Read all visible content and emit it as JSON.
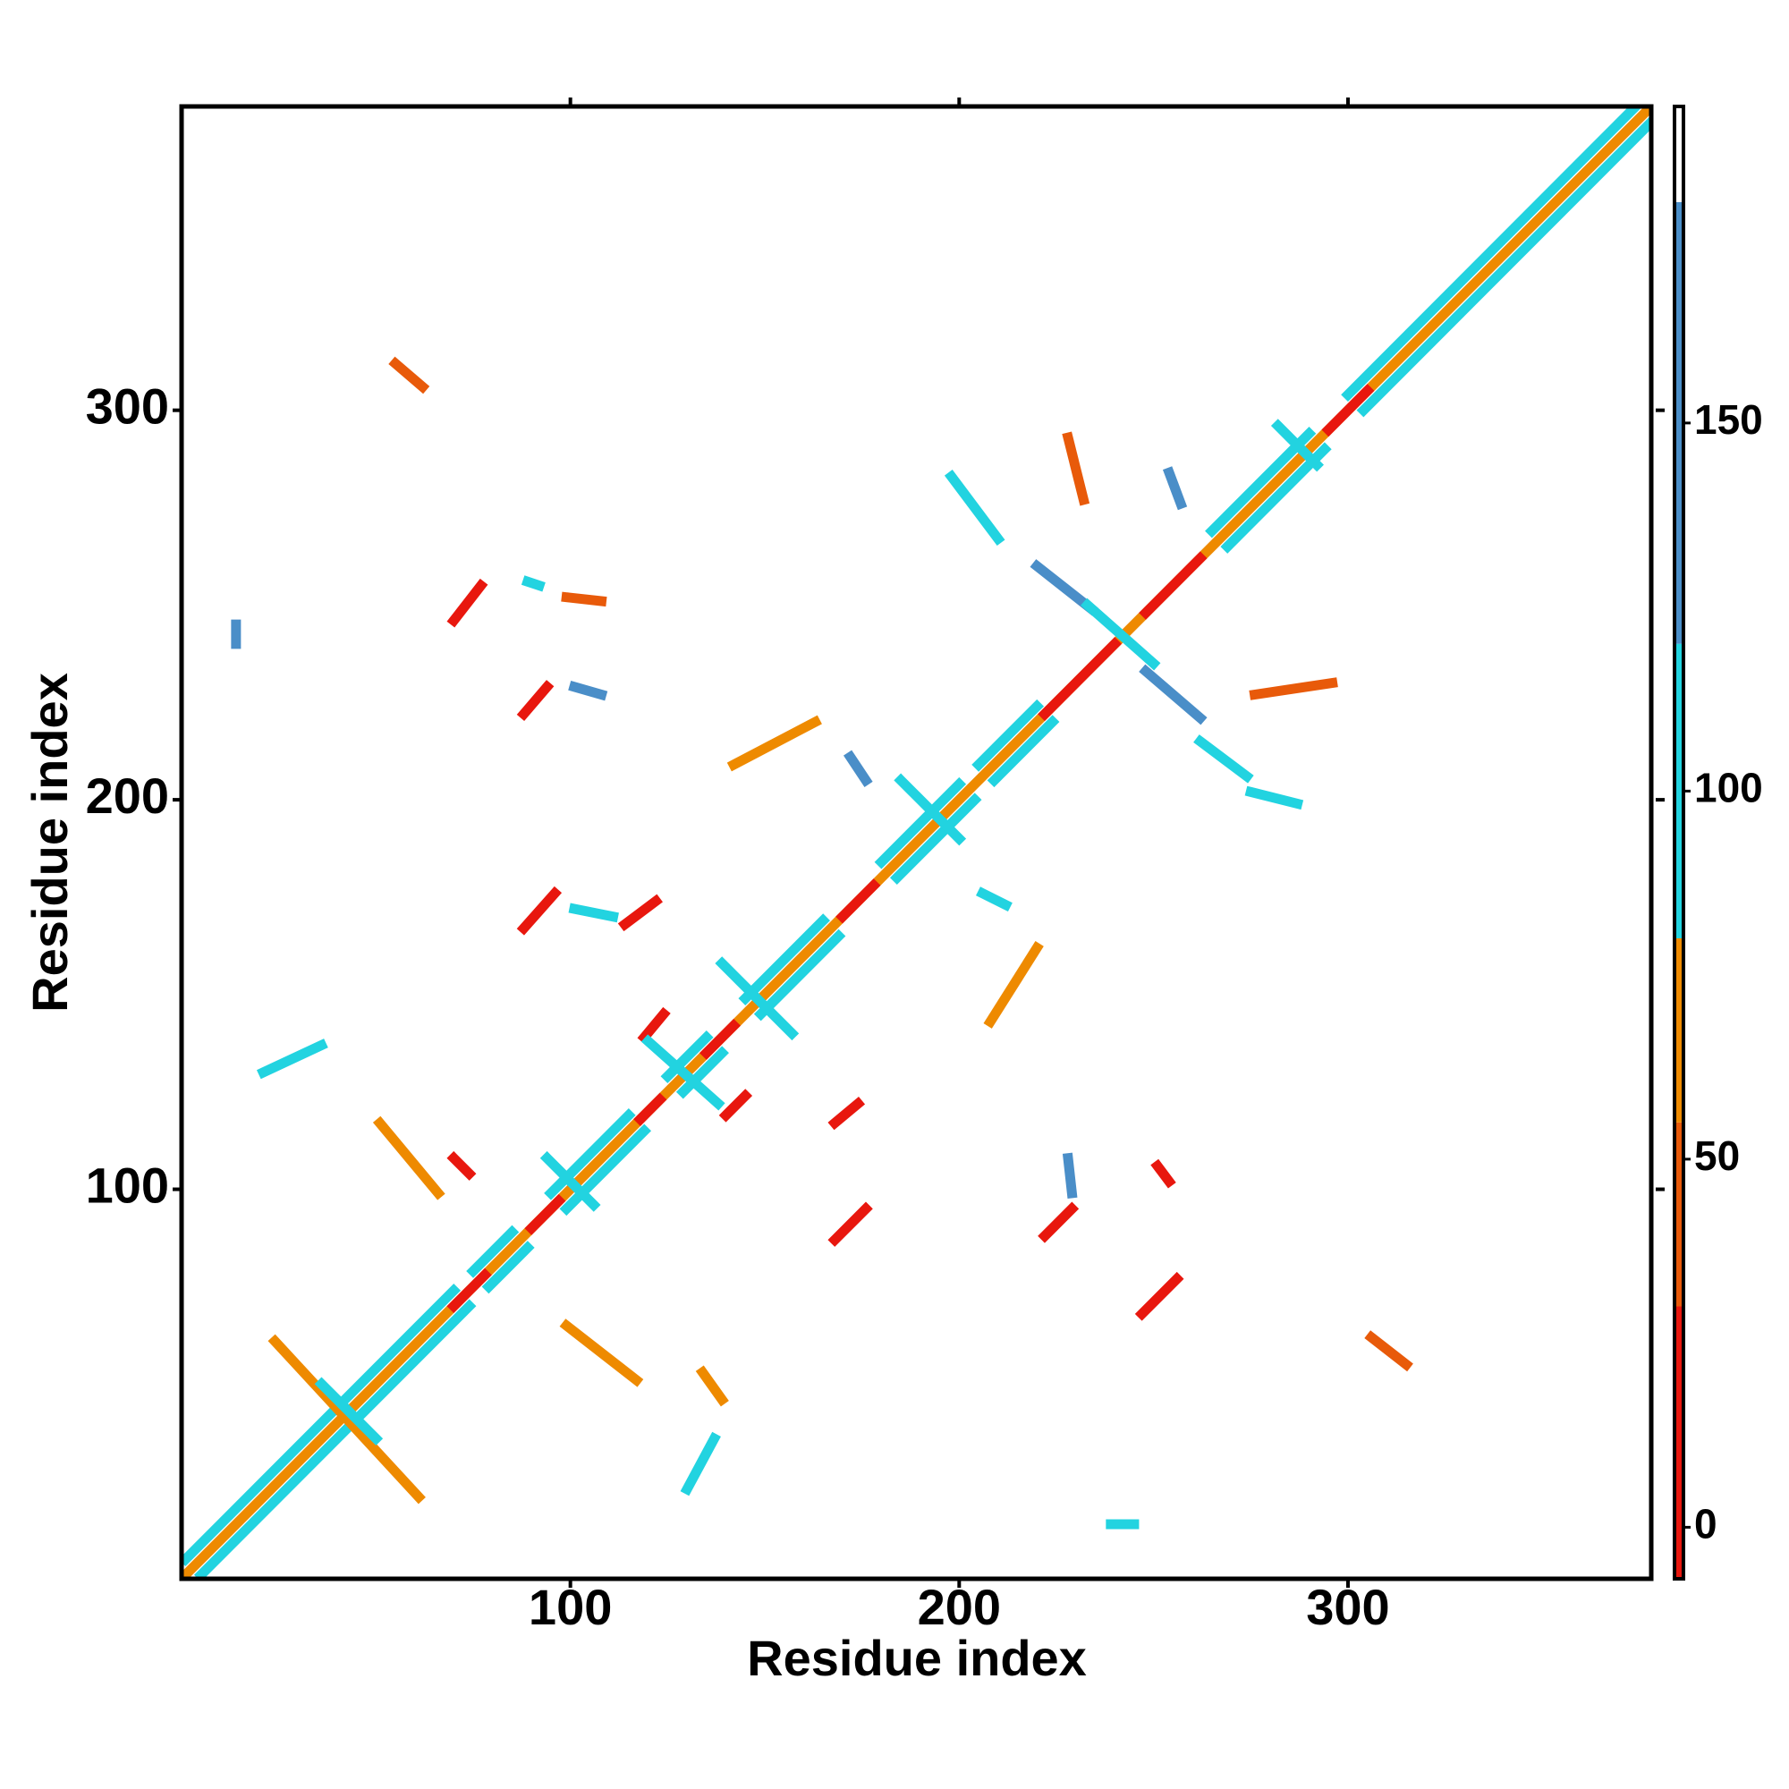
{
  "chart_data": {
    "type": "contact-map",
    "xlabel": "Residue index",
    "ylabel": "Residue index",
    "xlim": [
      0,
      378
    ],
    "ylim": [
      0,
      378
    ],
    "xticks": [
      100,
      200,
      300
    ],
    "yticks": [
      100,
      200,
      300
    ],
    "colorbar": {
      "lim": [
        -7,
        193
      ],
      "ticks": [
        0,
        50,
        100,
        150
      ],
      "bands": [
        {
          "range": [
            -7,
            30
          ],
          "color": "#e8170e"
        },
        {
          "range": [
            30,
            55
          ],
          "color": "#e85a0a"
        },
        {
          "range": [
            55,
            80
          ],
          "color": "#ee8a00"
        },
        {
          "range": [
            80,
            120
          ],
          "color": "#22d3e0"
        },
        {
          "range": [
            120,
            180
          ],
          "color": "#4a8ec8"
        },
        {
          "range": [
            180,
            193
          ],
          "color": "#ffffff"
        }
      ]
    },
    "contacts": [
      {
        "x": [
          1,
          70
        ],
        "y": [
          5,
          74
        ],
        "value": 95
      },
      {
        "x": [
          5,
          74
        ],
        "y": [
          1,
          70
        ],
        "value": 95
      },
      {
        "x": [
          75,
          85
        ],
        "y": [
          79,
          89
        ],
        "value": 95
      },
      {
        "x": [
          79,
          89
        ],
        "y": [
          75,
          85
        ],
        "value": 95
      },
      {
        "x": [
          95,
          115
        ],
        "y": [
          99,
          119
        ],
        "value": 95
      },
      {
        "x": [
          99,
          119
        ],
        "y": [
          95,
          115
        ],
        "value": 95
      },
      {
        "x": [
          125,
          135
        ],
        "y": [
          129,
          139
        ],
        "value": 95
      },
      {
        "x": [
          129,
          139
        ],
        "y": [
          125,
          135
        ],
        "value": 95
      },
      {
        "x": [
          145,
          165
        ],
        "y": [
          149,
          169
        ],
        "value": 95
      },
      {
        "x": [
          149,
          169
        ],
        "y": [
          145,
          165
        ],
        "value": 95
      },
      {
        "x": [
          180,
          200
        ],
        "y": [
          184,
          204
        ],
        "value": 95
      },
      {
        "x": [
          184,
          204
        ],
        "y": [
          180,
          200
        ],
        "value": 95
      },
      {
        "x": [
          205,
          220
        ],
        "y": [
          209,
          224
        ],
        "value": 95
      },
      {
        "x": [
          209,
          224
        ],
        "y": [
          205,
          220
        ],
        "value": 95
      },
      {
        "x": [
          265,
          290
        ],
        "y": [
          269,
          294
        ],
        "value": 95
      },
      {
        "x": [
          269,
          294
        ],
        "y": [
          265,
          290
        ],
        "value": 95
      },
      {
        "x": [
          300,
          374
        ],
        "y": [
          304,
          378
        ],
        "value": 95
      },
      {
        "x": [
          304,
          378
        ],
        "y": [
          300,
          374
        ],
        "value": 95
      },
      {
        "x": [
          1,
          378
        ],
        "y": [
          1,
          378
        ],
        "value": 60
      },
      {
        "x": [
          70,
          78
        ],
        "y": [
          70,
          78
        ],
        "value": 5
      },
      {
        "x": [
          90,
          97
        ],
        "y": [
          90,
          97
        ],
        "value": 5
      },
      {
        "x": [
          118,
          123
        ],
        "y": [
          118,
          123
        ],
        "value": 5
      },
      {
        "x": [
          135,
          142
        ],
        "y": [
          135,
          142
        ],
        "value": 5
      },
      {
        "x": [
          170,
          178
        ],
        "y": [
          170,
          178
        ],
        "value": 5
      },
      {
        "x": [
          222,
          240
        ],
        "y": [
          222,
          240
        ],
        "value": 5
      },
      {
        "x": [
          248,
          262
        ],
        "y": [
          248,
          262
        ],
        "value": 5
      },
      {
        "x": [
          295,
          305
        ],
        "y": [
          295,
          305
        ],
        "value": 5
      },
      {
        "x": [
          70,
          77
        ],
        "y": [
          246,
          255
        ],
        "value": 5
      },
      {
        "x": [
          247,
          256
        ],
        "y": [
          68,
          77
        ],
        "value": 5
      },
      {
        "x": [
          88,
          94
        ],
        "y": [
          222,
          229
        ],
        "value": 5
      },
      {
        "x": [
          168,
          176
        ],
        "y": [
          87,
          95
        ],
        "value": 5
      },
      {
        "x": [
          88,
          96
        ],
        "y": [
          167,
          176
        ],
        "value": 5
      },
      {
        "x": [
          114,
          122
        ],
        "y": [
          168,
          174
        ],
        "value": 5
      },
      {
        "x": [
          119,
          124
        ],
        "y": [
          139,
          145
        ],
        "value": 5
      },
      {
        "x": [
          140,
          145
        ],
        "y": [
          119,
          124
        ],
        "value": 5
      },
      {
        "x": [
          168,
          174
        ],
        "y": [
          117,
          122
        ],
        "value": 5
      },
      {
        "x": [
          222,
          229
        ],
        "y": [
          88,
          95
        ],
        "value": 5
      },
      {
        "x": [
          220,
          234
        ],
        "y": [
          260,
          249
        ],
        "value": 150
      },
      {
        "x": [
          248,
          262
        ],
        "y": [
          233,
          221
        ],
        "value": 150
      },
      {
        "x": [
          198,
          210
        ],
        "y": [
          283,
          267
        ],
        "value": 95
      },
      {
        "x": [
          262,
          274
        ],
        "y": [
          215,
          206
        ],
        "value": 95
      },
      {
        "x": [
          142,
          163
        ],
        "y": [
          209,
          220
        ],
        "value": 70
      },
      {
        "x": [
          208,
          220
        ],
        "y": [
          143,
          162
        ],
        "value": 65
      },
      {
        "x": [
          21,
          36
        ],
        "y": [
          130,
          137
        ],
        "value": 95
      },
      {
        "x": [
          130,
          137
        ],
        "y": [
          23,
          36
        ],
        "value": 95
      },
      {
        "x": [
          99,
          117
        ],
        "y": [
          65,
          51
        ],
        "value": 60
      },
      {
        "x": [
          24,
          61
        ],
        "y": [
          61,
          21
        ],
        "value": 70
      },
      {
        "x": [
          51,
          66
        ],
        "y": [
          117,
          99
        ],
        "value": 65
      },
      {
        "x": [
          275,
          287
        ],
        "y": [
          202,
          199
        ],
        "value": 95
      },
      {
        "x": [
          276,
          296
        ],
        "y": [
          227,
          230
        ],
        "value": 30
      },
      {
        "x": [
          55,
          62
        ],
        "y": [
          312,
          306
        ],
        "value": 40
      },
      {
        "x": [
          306,
          315
        ],
        "y": [
          62,
          55
        ],
        "value": 40
      },
      {
        "x": [
          134,
          139
        ],
        "y": [
          53,
          46
        ],
        "value": 70
      },
      {
        "x": [
          251,
          254
        ],
        "y": [
          106,
          102
        ],
        "value": 25
      },
      {
        "x": [
          228,
          229
        ],
        "y": [
          108,
          99
        ],
        "value": 120
      },
      {
        "x": [
          99,
          108
        ],
        "y": [
          252,
          251
        ],
        "value": 40
      },
      {
        "x": [
          101,
          108
        ],
        "y": [
          229,
          227
        ],
        "value": 130
      },
      {
        "x": [
          101,
          111
        ],
        "y": [
          172,
          170
        ],
        "value": 95
      },
      {
        "x": [
          14,
          14
        ],
        "y": [
          245,
          240
        ],
        "value": 120
      },
      {
        "x": [
          239,
          245
        ],
        "y": [
          14,
          14
        ],
        "value": 95
      },
      {
        "x": [
          228,
          232
        ],
        "y": [
          293,
          277
        ],
        "value": 40
      },
      {
        "x": [
          254,
          257
        ],
        "y": [
          284,
          276
        ],
        "value": 130
      },
      {
        "x": [
          89,
          92
        ],
        "y": [
          256,
          255
        ],
        "value": 110
      },
      {
        "x": [
          70,
          74
        ],
        "y": [
          108,
          104
        ],
        "value": 10
      },
      {
        "x": [
          172,
          176
        ],
        "y": [
          211,
          205
        ],
        "value": 120
      },
      {
        "x": [
          206,
          212
        ],
        "y": [
          176,
          173
        ],
        "value": 95
      },
      {
        "x": [
          139,
          157
        ],
        "y": [
          158,
          140
        ],
        "value": 95
      },
      {
        "x": [
          120,
          138
        ],
        "y": [
          138,
          122
        ],
        "value": 95
      },
      {
        "x": [
          233,
          250
        ],
        "y": [
          250,
          235
        ],
        "value": 95
      },
      {
        "x": [
          282,
          292
        ],
        "y": [
          296,
          286
        ],
        "value": 95
      },
      {
        "x": [
          36,
          50
        ],
        "y": [
          50,
          36
        ],
        "value": 95
      },
      {
        "x": [
          94,
          106
        ],
        "y": [
          108,
          96
        ],
        "value": 95
      },
      {
        "x": [
          185,
          200
        ],
        "y": [
          205,
          190
        ],
        "value": 95
      }
    ]
  }
}
